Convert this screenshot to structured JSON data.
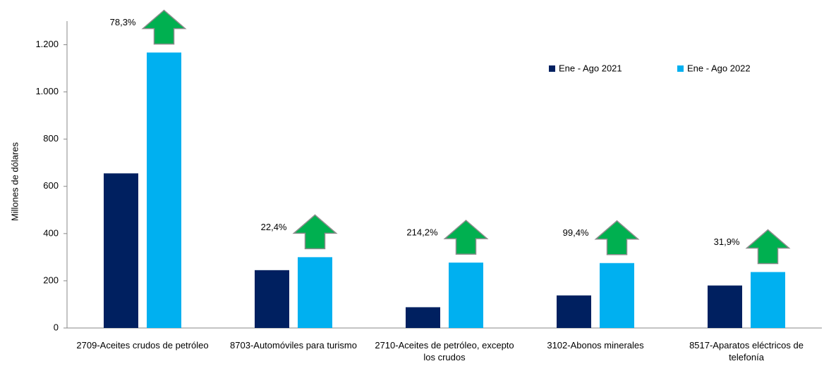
{
  "chart_data": {
    "type": "bar",
    "y_label": "Millones de dólares",
    "categories": [
      "2709-Aceites crudos de petróleo",
      "8703-Automóviles para turismo",
      "2710-Aceites de petróleo, excepto los crudos",
      "3102-Abonos minerales",
      "8517-Aparatos eléctricos de telefonía"
    ],
    "series": [
      {
        "name": "Ene - Ago 2021",
        "color": "#002060",
        "values": [
          655,
          245,
          88,
          138,
          180
        ]
      },
      {
        "name": "Ene - Ago 2022",
        "color": "#00b0f0",
        "values": [
          1167,
          300,
          277,
          275,
          237
        ]
      }
    ],
    "annotations": [
      "78,3%",
      "22,4%",
      "214,2%",
      "99,4%",
      "31,9%"
    ],
    "ylim": [
      0,
      1300
    ],
    "yticks": [
      0,
      200,
      400,
      600,
      800,
      {
        "value": 1000,
        "label": "1.000"
      },
      {
        "value": 1200,
        "label": "1.200"
      }
    ],
    "legend": "top-right"
  }
}
